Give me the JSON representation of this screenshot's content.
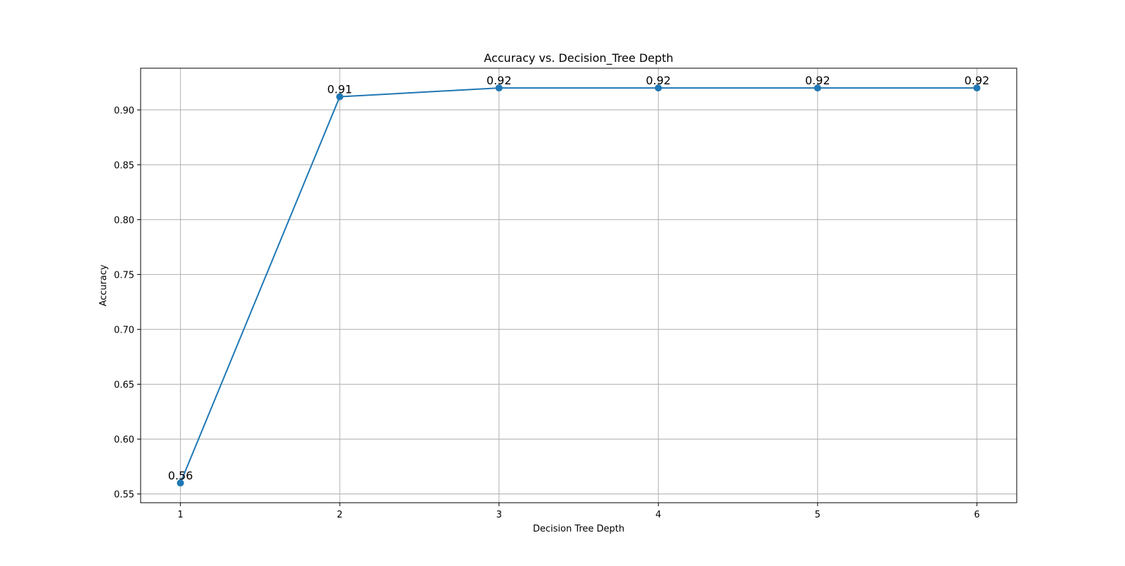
{
  "chart_data": {
    "type": "line",
    "title": "Accuracy vs. Decision_Tree Depth",
    "xlabel": "Decision Tree Depth",
    "ylabel": "Accuracy",
    "x": [
      1,
      2,
      3,
      4,
      5,
      6
    ],
    "x_ticks": [
      "1",
      "2",
      "3",
      "4",
      "5",
      "6"
    ],
    "y_ticks": [
      "0.55",
      "0.60",
      "0.65",
      "0.70",
      "0.75",
      "0.80",
      "0.85",
      "0.90"
    ],
    "xlim": [
      0.75,
      6.25
    ],
    "ylim": [
      0.542,
      0.938
    ],
    "grid": true,
    "series": [
      {
        "values": [
          0.56,
          0.912,
          0.92,
          0.92,
          0.92,
          0.92
        ],
        "labels": [
          "0.56",
          "0.91",
          "0.92",
          "0.92",
          "0.92",
          "0.92"
        ],
        "color": "#1f77b4",
        "marker": "circle"
      }
    ]
  }
}
